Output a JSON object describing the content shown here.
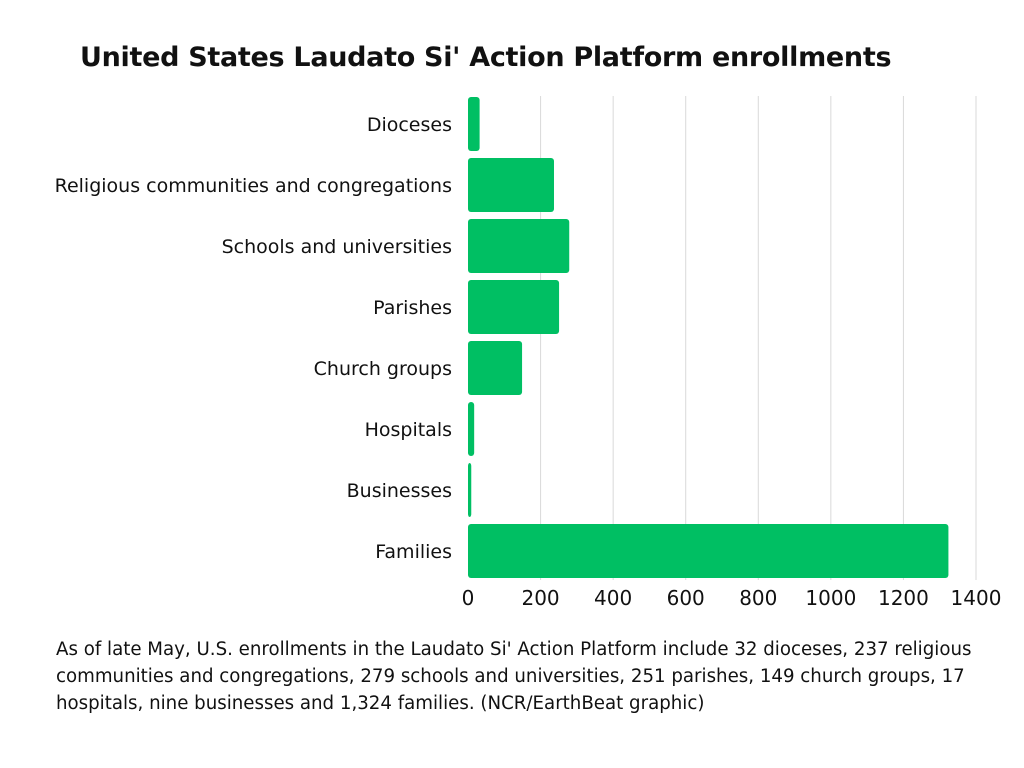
{
  "chart_data": {
    "type": "bar",
    "orientation": "horizontal",
    "title": "United States Laudato Si' Action Platform enrollments",
    "categories": [
      "Dioceses",
      "Religious communities and congregations",
      "Schools and universities",
      "Parishes",
      "Church groups",
      "Hospitals",
      "Businesses",
      "Families"
    ],
    "values": [
      32,
      237,
      279,
      251,
      149,
      17,
      9,
      1324
    ],
    "xlim": [
      0,
      1400
    ],
    "xticks": [
      0,
      200,
      400,
      600,
      800,
      1000,
      1200,
      1400
    ],
    "grid": "vertical",
    "bar_color": "#00bf63",
    "grid_color": "#d9d9d9"
  },
  "caption": "As of late May, U.S. enrollments in the Laudato Si' Action Platform include 32 dioceses, 237 religious communities and congregations, 279 schools and universities, 251 parishes, 149 church groups, 17 hospitals, nine businesses and 1,324 families. (NCR/EarthBeat graphic)"
}
